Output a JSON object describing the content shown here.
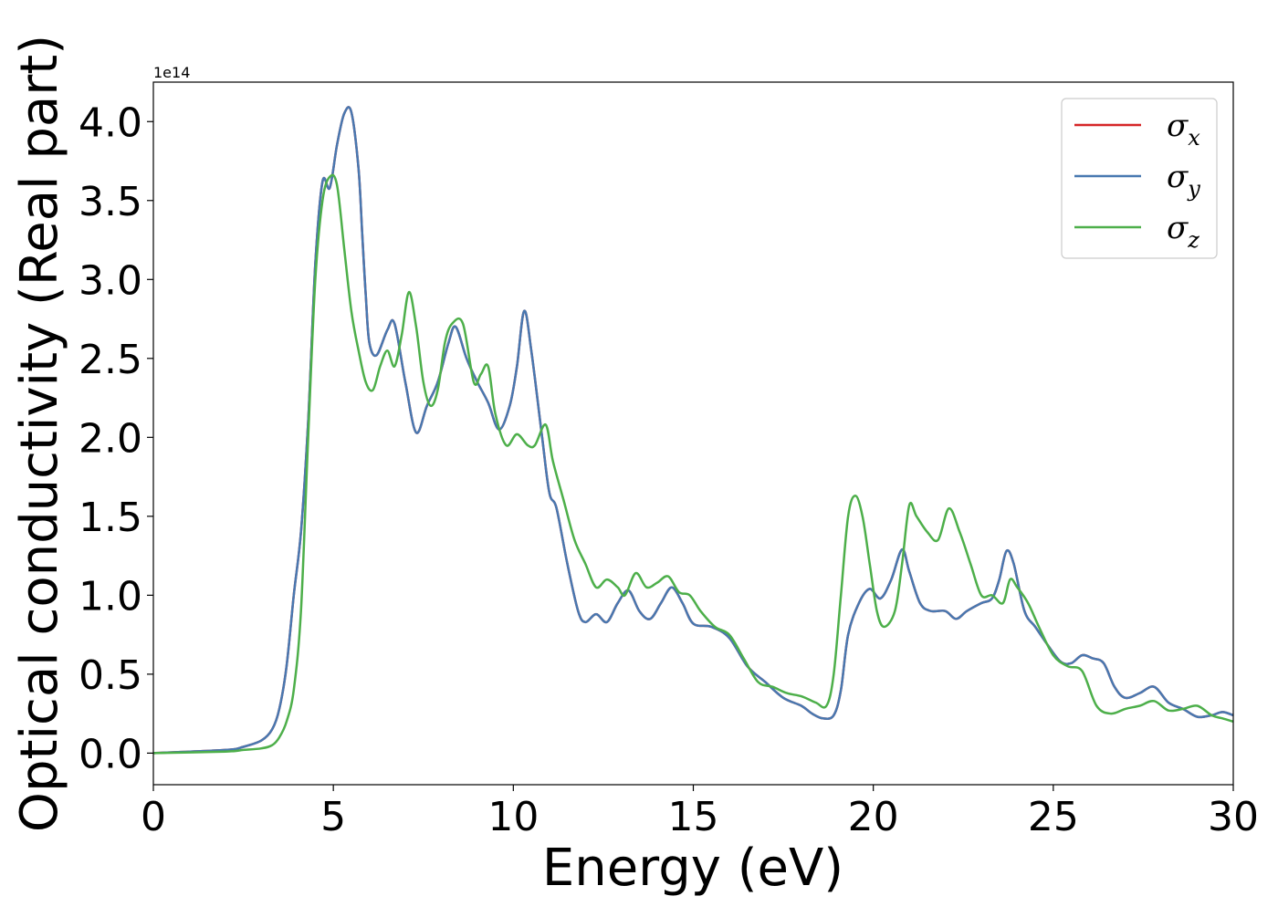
{
  "chart_data": {
    "type": "line",
    "xlabel": "Energy (eV)",
    "ylabel": "Optical conductivity (Real part)",
    "y_offset_label": "1e14",
    "y_scale": 100000000000000.0,
    "xlim": [
      0,
      30
    ],
    "ylim": [
      -0.2,
      4.25
    ],
    "x_ticks": [
      0,
      5,
      10,
      15,
      20,
      25,
      30
    ],
    "x_tick_labels": [
      "0",
      "5",
      "10",
      "15",
      "20",
      "25",
      "30"
    ],
    "y_ticks": [
      0.0,
      0.5,
      1.0,
      1.5,
      2.0,
      2.5,
      3.0,
      3.5,
      4.0
    ],
    "y_tick_labels": [
      "0.0",
      "0.5",
      "1.0",
      "1.5",
      "2.0",
      "2.5",
      "3.0",
      "3.5",
      "4.0"
    ],
    "grid": false,
    "legend_position": "top-right",
    "series": [
      {
        "name": "σx",
        "name_base": "σ",
        "name_sub": "x",
        "color": "#d62728",
        "x": [
          0,
          2,
          2.5,
          3,
          3.3,
          3.5,
          3.7,
          3.9,
          4.1,
          4.3,
          4.5,
          4.7,
          4.9,
          5.1,
          5.3,
          5.5,
          5.7,
          5.8,
          5.9,
          6.0,
          6.2,
          6.5,
          6.7,
          7.0,
          7.3,
          7.6,
          7.9,
          8.2,
          8.4,
          8.7,
          9.0,
          9.3,
          9.6,
          9.9,
          10.1,
          10.3,
          10.5,
          10.8,
          11.0,
          11.2,
          11.5,
          11.8,
          12.0,
          12.3,
          12.6,
          12.9,
          13.2,
          13.5,
          13.8,
          14.1,
          14.4,
          14.7,
          15.0,
          15.5,
          16.0,
          16.5,
          17.0,
          17.5,
          18.0,
          18.3,
          18.6,
          18.9,
          19.1,
          19.3,
          19.6,
          19.9,
          20.2,
          20.5,
          20.8,
          21.0,
          21.3,
          21.6,
          22.0,
          22.3,
          22.6,
          23.0,
          23.3,
          23.5,
          23.7,
          23.9,
          24.2,
          24.5,
          24.8,
          25.2,
          25.5,
          25.8,
          26.1,
          26.4,
          26.7,
          27.0,
          27.4,
          27.8,
          28.2,
          28.6,
          29.0,
          29.4,
          29.7,
          30.0
        ],
        "values": [
          0,
          0.02,
          0.04,
          0.08,
          0.15,
          0.28,
          0.55,
          1.0,
          1.4,
          2.1,
          3.1,
          3.62,
          3.58,
          3.85,
          4.05,
          4.06,
          3.7,
          3.3,
          2.9,
          2.6,
          2.52,
          2.68,
          2.72,
          2.35,
          2.03,
          2.2,
          2.35,
          2.6,
          2.7,
          2.5,
          2.35,
          2.22,
          2.05,
          2.2,
          2.45,
          2.8,
          2.55,
          2.0,
          1.65,
          1.55,
          1.2,
          0.9,
          0.83,
          0.88,
          0.83,
          0.95,
          1.03,
          0.9,
          0.85,
          0.95,
          1.05,
          0.95,
          0.82,
          0.8,
          0.73,
          0.55,
          0.45,
          0.35,
          0.3,
          0.25,
          0.22,
          0.24,
          0.4,
          0.75,
          0.95,
          1.04,
          0.98,
          1.1,
          1.29,
          1.15,
          0.95,
          0.9,
          0.9,
          0.85,
          0.9,
          0.95,
          0.98,
          1.1,
          1.28,
          1.2,
          0.9,
          0.8,
          0.7,
          0.58,
          0.57,
          0.62,
          0.6,
          0.57,
          0.42,
          0.35,
          0.38,
          0.42,
          0.32,
          0.28,
          0.23,
          0.24,
          0.26,
          0.24
        ]
      },
      {
        "name": "σy",
        "name_base": "σ",
        "name_sub": "y",
        "color": "#4878b0",
        "x": [
          0,
          2,
          2.5,
          3,
          3.3,
          3.5,
          3.7,
          3.9,
          4.1,
          4.3,
          4.5,
          4.7,
          4.9,
          5.1,
          5.3,
          5.5,
          5.7,
          5.8,
          5.9,
          6.0,
          6.2,
          6.5,
          6.7,
          7.0,
          7.3,
          7.6,
          7.9,
          8.2,
          8.4,
          8.7,
          9.0,
          9.3,
          9.6,
          9.9,
          10.1,
          10.3,
          10.5,
          10.8,
          11.0,
          11.2,
          11.5,
          11.8,
          12.0,
          12.3,
          12.6,
          12.9,
          13.2,
          13.5,
          13.8,
          14.1,
          14.4,
          14.7,
          15.0,
          15.5,
          16.0,
          16.5,
          17.0,
          17.5,
          18.0,
          18.3,
          18.6,
          18.9,
          19.1,
          19.3,
          19.6,
          19.9,
          20.2,
          20.5,
          20.8,
          21.0,
          21.3,
          21.6,
          22.0,
          22.3,
          22.6,
          23.0,
          23.3,
          23.5,
          23.7,
          23.9,
          24.2,
          24.5,
          24.8,
          25.2,
          25.5,
          25.8,
          26.1,
          26.4,
          26.7,
          27.0,
          27.4,
          27.8,
          28.2,
          28.6,
          29.0,
          29.4,
          29.7,
          30.0
        ],
        "values": [
          0,
          0.02,
          0.04,
          0.08,
          0.15,
          0.28,
          0.55,
          1.0,
          1.4,
          2.1,
          3.1,
          3.62,
          3.58,
          3.85,
          4.05,
          4.06,
          3.7,
          3.3,
          2.9,
          2.6,
          2.52,
          2.68,
          2.72,
          2.35,
          2.03,
          2.2,
          2.35,
          2.6,
          2.7,
          2.5,
          2.35,
          2.22,
          2.05,
          2.2,
          2.45,
          2.8,
          2.55,
          2.0,
          1.65,
          1.55,
          1.2,
          0.9,
          0.83,
          0.88,
          0.83,
          0.95,
          1.03,
          0.9,
          0.85,
          0.95,
          1.05,
          0.95,
          0.82,
          0.8,
          0.73,
          0.55,
          0.45,
          0.35,
          0.3,
          0.25,
          0.22,
          0.24,
          0.4,
          0.75,
          0.95,
          1.04,
          0.98,
          1.1,
          1.29,
          1.15,
          0.95,
          0.9,
          0.9,
          0.85,
          0.9,
          0.95,
          0.98,
          1.1,
          1.28,
          1.2,
          0.9,
          0.8,
          0.7,
          0.58,
          0.57,
          0.62,
          0.6,
          0.57,
          0.42,
          0.35,
          0.38,
          0.42,
          0.32,
          0.28,
          0.23,
          0.24,
          0.26,
          0.24
        ]
      },
      {
        "name": "σz",
        "name_base": "σ",
        "name_sub": "z",
        "color": "#4daf4a",
        "x": [
          0,
          2,
          2.5,
          3,
          3.3,
          3.5,
          3.7,
          3.9,
          4.1,
          4.3,
          4.5,
          4.7,
          4.9,
          5.1,
          5.3,
          5.5,
          5.7,
          5.9,
          6.1,
          6.3,
          6.5,
          6.7,
          6.9,
          7.1,
          7.3,
          7.5,
          7.7,
          7.9,
          8.1,
          8.3,
          8.6,
          8.9,
          9.1,
          9.3,
          9.5,
          9.8,
          10.1,
          10.4,
          10.6,
          10.9,
          11.1,
          11.4,
          11.7,
          12.0,
          12.3,
          12.6,
          12.9,
          13.1,
          13.4,
          13.7,
          14.0,
          14.3,
          14.6,
          14.9,
          15.2,
          15.6,
          16.0,
          16.4,
          16.8,
          17.2,
          17.6,
          18.0,
          18.4,
          18.7,
          18.9,
          19.1,
          19.3,
          19.5,
          19.7,
          19.9,
          20.1,
          20.3,
          20.6,
          20.8,
          21.0,
          21.2,
          21.5,
          21.8,
          22.1,
          22.4,
          22.7,
          23.0,
          23.3,
          23.6,
          23.8,
          24.0,
          24.3,
          24.6,
          25.0,
          25.4,
          25.8,
          26.2,
          26.6,
          27.0,
          27.4,
          27.8,
          28.2,
          28.6,
          29.0,
          29.4,
          29.7,
          30.0
        ],
        "values": [
          0,
          0.01,
          0.02,
          0.03,
          0.05,
          0.1,
          0.2,
          0.4,
          0.9,
          2.0,
          3.0,
          3.5,
          3.65,
          3.6,
          3.2,
          2.8,
          2.55,
          2.35,
          2.3,
          2.45,
          2.55,
          2.45,
          2.65,
          2.92,
          2.7,
          2.35,
          2.2,
          2.3,
          2.6,
          2.72,
          2.72,
          2.35,
          2.4,
          2.45,
          2.15,
          1.95,
          2.02,
          1.95,
          1.95,
          2.08,
          1.85,
          1.6,
          1.35,
          1.2,
          1.05,
          1.1,
          1.05,
          1.0,
          1.14,
          1.05,
          1.08,
          1.12,
          1.02,
          1.0,
          0.9,
          0.8,
          0.75,
          0.6,
          0.45,
          0.42,
          0.38,
          0.36,
          0.32,
          0.3,
          0.5,
          1.0,
          1.5,
          1.63,
          1.5,
          1.2,
          0.9,
          0.8,
          0.9,
          1.2,
          1.57,
          1.5,
          1.4,
          1.35,
          1.55,
          1.4,
          1.2,
          1.0,
          1.0,
          0.95,
          1.1,
          1.05,
          0.95,
          0.8,
          0.62,
          0.55,
          0.52,
          0.3,
          0.25,
          0.28,
          0.3,
          0.33,
          0.27,
          0.28,
          0.3,
          0.24,
          0.22,
          0.2
        ]
      }
    ]
  }
}
